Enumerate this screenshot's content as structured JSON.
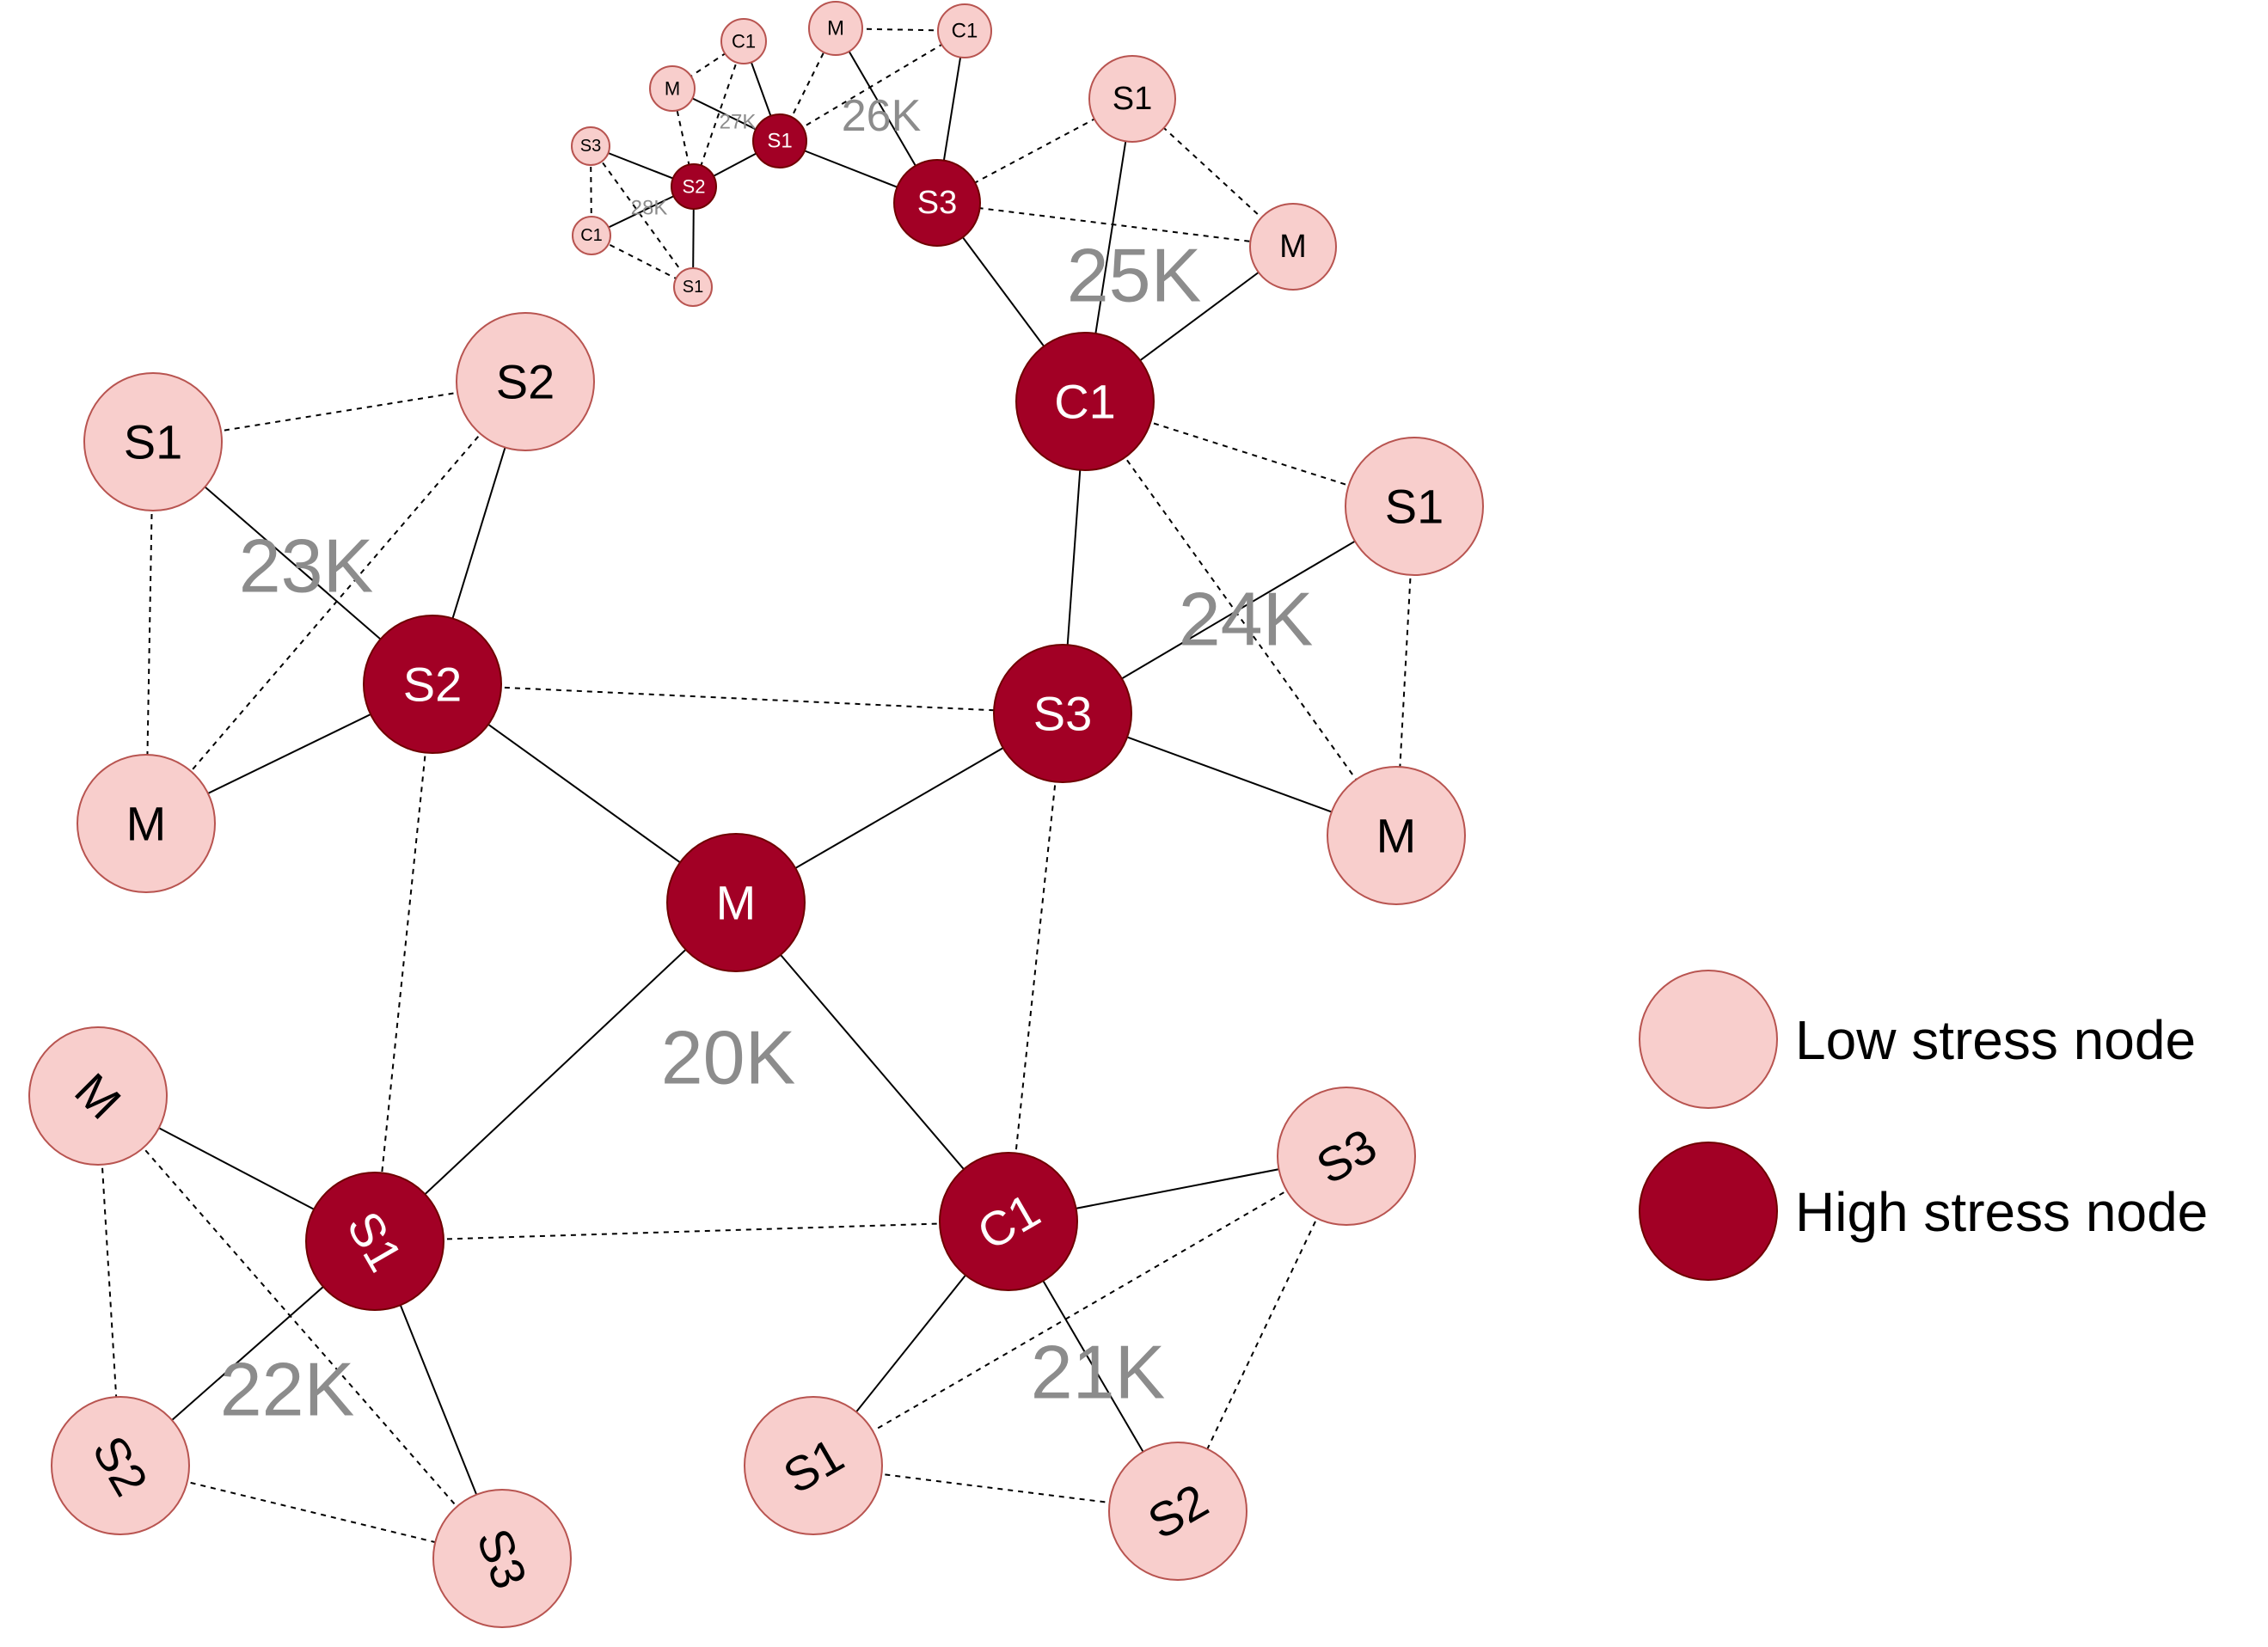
{
  "colors": {
    "low_fill": "#f8cecc",
    "low_stroke": "#b85450",
    "high_fill": "#a20025",
    "high_stroke": "#6f0000",
    "low_text": "#000000",
    "high_text": "#ffffff",
    "weight_text": "#8c8c8c",
    "edge": "#000000"
  },
  "legend": {
    "low_label": "Low stress node",
    "high_label": "High stress node"
  },
  "diagram": {
    "clusters": [
      {
        "weight_label": "20K",
        "nodes": [
          {
            "label": "M",
            "stress": "high"
          },
          {
            "label": "S2",
            "stress": "high"
          },
          {
            "label": "S3",
            "stress": "high"
          },
          {
            "label": "S1",
            "stress": "high"
          },
          {
            "label": "C1",
            "stress": "high"
          }
        ]
      },
      {
        "weight_label": "23K",
        "nodes": [
          {
            "label": "S1",
            "stress": "low"
          },
          {
            "label": "S2",
            "stress": "low"
          },
          {
            "label": "M",
            "stress": "low"
          }
        ]
      },
      {
        "weight_label": "24K",
        "nodes": [
          {
            "label": "C1",
            "stress": "high"
          },
          {
            "label": "S1",
            "stress": "low"
          },
          {
            "label": "M",
            "stress": "low"
          }
        ]
      },
      {
        "weight_label": "25K",
        "nodes": [
          {
            "label": "S3",
            "stress": "high"
          },
          {
            "label": "S1",
            "stress": "low"
          },
          {
            "label": "M",
            "stress": "low"
          }
        ]
      },
      {
        "weight_label": "26K",
        "nodes": [
          {
            "label": "S1",
            "stress": "high"
          },
          {
            "label": "M",
            "stress": "low"
          },
          {
            "label": "C1",
            "stress": "low"
          }
        ]
      },
      {
        "weight_label": "27K",
        "nodes": [
          {
            "label": "S2",
            "stress": "high"
          },
          {
            "label": "C1",
            "stress": "low"
          },
          {
            "label": "M",
            "stress": "low"
          }
        ]
      },
      {
        "weight_label": "28K",
        "nodes": [
          {
            "label": "S3",
            "stress": "low"
          },
          {
            "label": "C1",
            "stress": "low"
          },
          {
            "label": "S1",
            "stress": "low"
          }
        ]
      },
      {
        "weight_label": "22K",
        "nodes": [
          {
            "label": "M",
            "stress": "low"
          },
          {
            "label": "S2",
            "stress": "low"
          },
          {
            "label": "S3",
            "stress": "low"
          }
        ]
      },
      {
        "weight_label": "21K",
        "nodes": [
          {
            "label": "S3",
            "stress": "low"
          },
          {
            "label": "S1",
            "stress": "low"
          },
          {
            "label": "S2",
            "stress": "low"
          }
        ]
      }
    ]
  }
}
